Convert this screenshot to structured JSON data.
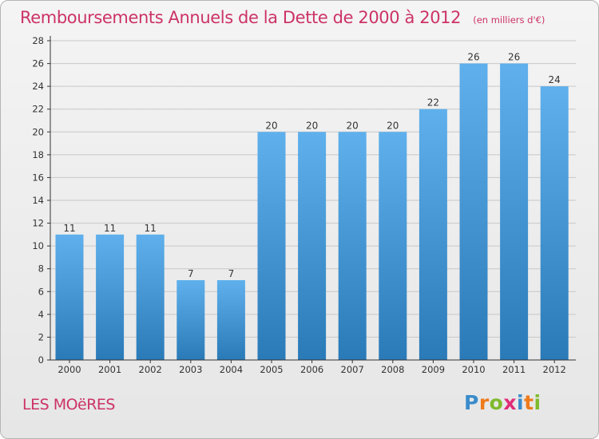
{
  "header": {
    "title": "Remboursements Annuels de la Dette de 2000 à 2012",
    "subtitle": "(en milliers d'€)"
  },
  "footer": {
    "commune": "LES MOëRES",
    "logo_text": "Proxiti"
  },
  "colors": {
    "title": "#cc3366",
    "bar_top": "#5fb0ec",
    "bar_bottom": "#2a7ab8",
    "axis": "#333333",
    "grid": "#c8c8c8"
  },
  "chart_data": {
    "type": "bar",
    "title": "Remboursements Annuels de la Dette de 2000 à 2012",
    "xlabel": "",
    "ylabel": "",
    "categories": [
      "2000",
      "2001",
      "2002",
      "2003",
      "2004",
      "2005",
      "2006",
      "2007",
      "2008",
      "2009",
      "2010",
      "2011",
      "2012"
    ],
    "values": [
      11,
      11,
      11,
      7,
      7,
      20,
      20,
      20,
      20,
      22,
      26,
      26,
      24
    ],
    "ylim": [
      0,
      28
    ],
    "yticks": [
      0,
      2,
      4,
      6,
      8,
      10,
      12,
      14,
      16,
      18,
      20,
      22,
      24,
      26,
      28
    ],
    "grid": true,
    "legend": "none"
  }
}
